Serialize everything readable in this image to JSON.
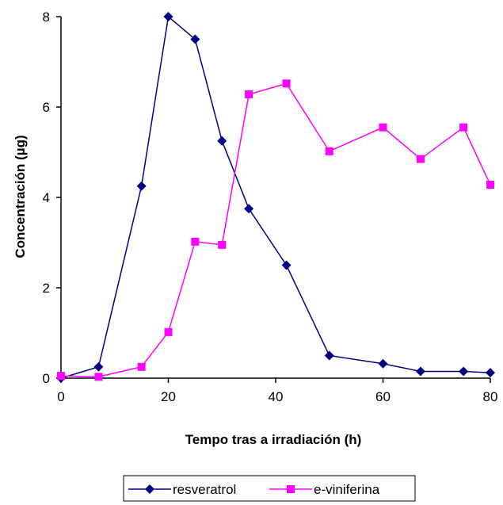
{
  "chart_data": {
    "type": "line",
    "xlabel": "Tempo tras a  irradiación (h)",
    "ylabel": "Concentración (µg)",
    "xlim": [
      0,
      80
    ],
    "ylim": [
      0,
      8
    ],
    "xticks": [
      0,
      20,
      40,
      60,
      80
    ],
    "yticks": [
      0,
      2,
      4,
      6,
      8
    ],
    "grid": false,
    "legend_position": "bottom-center",
    "series": [
      {
        "name": "resveratrol",
        "color": "#000080",
        "marker": "diamond",
        "x": [
          0,
          7,
          15,
          20,
          25,
          30,
          35,
          42,
          50,
          60,
          67,
          75,
          80
        ],
        "y": [
          0,
          0.25,
          4.25,
          8.0,
          7.5,
          5.25,
          3.75,
          2.5,
          0.5,
          0.32,
          0.15,
          0.15,
          0.12
        ]
      },
      {
        "name": "e-viniferina",
        "color": "#FF00FF",
        "marker": "square",
        "x": [
          0,
          7,
          15,
          20,
          25,
          30,
          35,
          42,
          50,
          60,
          67,
          75,
          80
        ],
        "y": [
          0.05,
          0.03,
          0.25,
          1.02,
          3.02,
          2.95,
          6.28,
          6.52,
          5.02,
          5.55,
          4.85,
          5.55,
          4.28
        ]
      }
    ]
  }
}
